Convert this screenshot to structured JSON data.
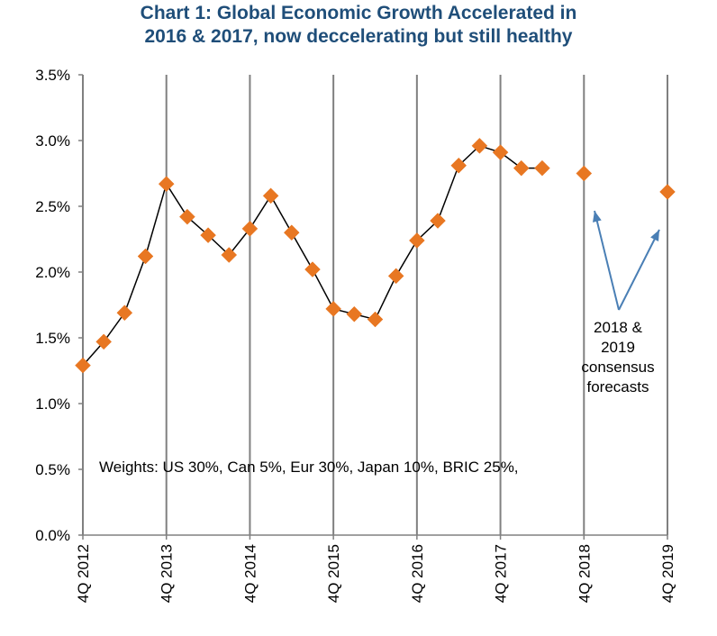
{
  "chart_data": {
    "type": "line",
    "title_line1": "Chart 1: Global Economic Growth Accelerated in",
    "title_line2": "2016 & 2017, now deccelerating but still healthy",
    "xlabel": "",
    "ylabel": "",
    "ylim": [
      0,
      3.5
    ],
    "y_ticks": [
      "0.0%",
      "0.5%",
      "1.0%",
      "1.5%",
      "2.0%",
      "2.5%",
      "3.0%",
      "3.5%"
    ],
    "x_ticks": [
      "4Q 2012",
      "4Q 2013",
      "4Q 2014",
      "4Q 2015",
      "4Q 2016",
      "4Q 2017",
      "4Q 2018",
      "4Q 2019"
    ],
    "grid": "vertical",
    "colors": {
      "title": "#1f4e79",
      "marker": "#e87722",
      "line": "#000000",
      "grid": "#808080",
      "arrow": "#4a7fb5"
    },
    "series": [
      {
        "values": [
          {
            "x": 2012.75,
            "y": 1.29
          },
          {
            "x": 2013.0,
            "y": 1.47
          },
          {
            "x": 2013.25,
            "y": 1.69
          },
          {
            "x": 2013.5,
            "y": 2.12
          },
          {
            "x": 2013.75,
            "y": 2.67
          },
          {
            "x": 2014.0,
            "y": 2.42
          },
          {
            "x": 2014.25,
            "y": 2.28
          },
          {
            "x": 2014.5,
            "y": 2.13
          },
          {
            "x": 2014.75,
            "y": 2.33
          },
          {
            "x": 2015.0,
            "y": 2.58
          },
          {
            "x": 2015.25,
            "y": 2.3
          },
          {
            "x": 2015.5,
            "y": 2.02
          },
          {
            "x": 2015.75,
            "y": 1.72
          },
          {
            "x": 2016.0,
            "y": 1.68
          },
          {
            "x": 2016.25,
            "y": 1.64
          },
          {
            "x": 2016.5,
            "y": 1.97
          },
          {
            "x": 2016.75,
            "y": 2.24
          },
          {
            "x": 2017.0,
            "y": 2.39
          },
          {
            "x": 2017.25,
            "y": 2.81
          },
          {
            "x": 2017.5,
            "y": 2.96
          },
          {
            "x": 2017.75,
            "y": 2.91
          },
          {
            "x": 2018.0,
            "y": 2.79
          },
          {
            "x": 2018.25,
            "y": 2.79
          }
        ]
      }
    ],
    "forecast_points": [
      {
        "x": 2018.75,
        "y": 2.75
      },
      {
        "x": 2019.75,
        "y": 2.61
      }
    ],
    "annotations": {
      "weights": "Weights: US 30%, Can 5%, Eur 30%, Japan 10%, BRIC 25%,",
      "forecast_lines": [
        "2018 &",
        "2019",
        "consensus",
        "forecasts"
      ]
    }
  }
}
